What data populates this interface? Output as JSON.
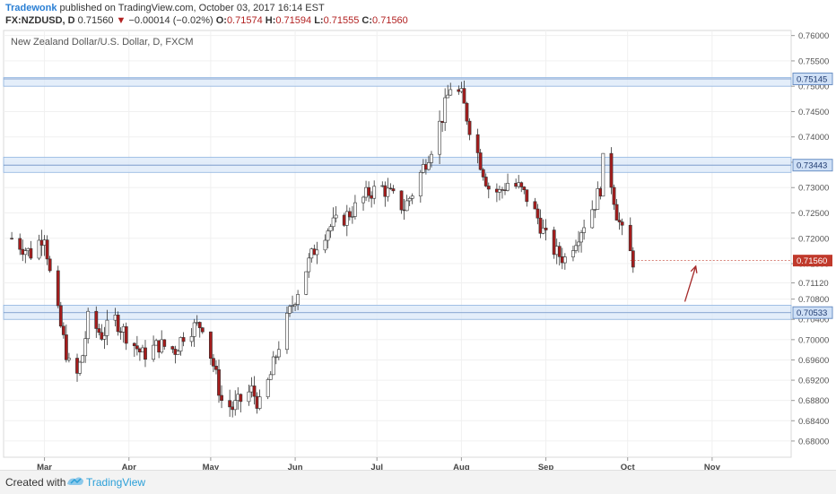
{
  "header": {
    "author": "Tradewonk",
    "published_text": "published on TradingView.com, October 03, 2017 16:14 EST",
    "symbol": "FX:NZDUSD, D",
    "last_price": "0.71560",
    "change": "−0.00014 (−0.02%)",
    "open_label": "O:",
    "open": "0.71574",
    "high_label": "H:",
    "high": "0.71594",
    "low_label": "L:",
    "low": "0.71555",
    "close_label": "C:",
    "close": "0.71560"
  },
  "footer": {
    "created_with": "Created with",
    "brand": "TradingView"
  },
  "colors": {
    "up_candle": "#ffffff",
    "down_candle": "#a51c1c",
    "wick": "#333333",
    "zone_fill": "#dbe8f8",
    "zone_stroke": "#8fb4e0",
    "price_badge": "#c0392b",
    "zone_badge_text": "#1f3a70",
    "arrow": "#a52a2a"
  },
  "chart_data": {
    "type": "candlestick",
    "title": "New Zealand Dollar/U.S. Dollar, D, FXCM",
    "ylim": [
      0.6768,
      0.761
    ],
    "y_ticks": [
      "0.76000",
      "0.75500",
      "0.75000",
      "0.74500",
      "0.74000",
      "0.73500",
      "0.73000",
      "0.72500",
      "0.72000",
      "0.71500",
      "0.71120",
      "0.70800",
      "0.70400",
      "0.70000",
      "0.69600",
      "0.69200",
      "0.68800",
      "0.68400",
      "0.68000"
    ],
    "month_ticks": [
      {
        "label": "Mar",
        "date": "2017-03-01"
      },
      {
        "label": "Apr",
        "date": "2017-04-01"
      },
      {
        "label": "May",
        "date": "2017-05-01"
      },
      {
        "label": "Jun",
        "date": "2017-06-01"
      },
      {
        "label": "Jul",
        "date": "2017-07-01"
      },
      {
        "label": "Aug",
        "date": "2017-08-01"
      },
      {
        "label": "Sep",
        "date": "2017-09-01"
      },
      {
        "label": "Oct",
        "date": "2017-10-01"
      },
      {
        "label": "Nov",
        "date": "2017-11-01"
      }
    ],
    "zones": [
      {
        "level": "0.75145",
        "low": 0.75,
        "high": 0.7517
      },
      {
        "level": "0.73443",
        "low": 0.733,
        "high": 0.736
      },
      {
        "level": "0.70533",
        "low": 0.704,
        "high": 0.7068
      }
    ],
    "current_price": "0.71560",
    "grid": true,
    "series_shape": [
      [
        "2017-02-17",
        0.72
      ],
      [
        "2017-02-24",
        0.717
      ],
      [
        "2017-03-01",
        0.721
      ],
      [
        "2017-03-03",
        0.713
      ],
      [
        "2017-03-06",
        0.705
      ],
      [
        "2017-03-08",
        0.7
      ],
      [
        "2017-03-10",
        0.695
      ],
      [
        "2017-03-13",
        0.693
      ],
      [
        "2017-03-15",
        0.697
      ],
      [
        "2017-03-17",
        0.704
      ],
      [
        "2017-03-22",
        0.701
      ],
      [
        "2017-03-27",
        0.704
      ],
      [
        "2017-03-31",
        0.701
      ],
      [
        "2017-04-06",
        0.697
      ],
      [
        "2017-04-12",
        0.699
      ],
      [
        "2017-04-18",
        0.698
      ],
      [
        "2017-04-22",
        0.702
      ],
      [
        "2017-04-28",
        0.703
      ],
      [
        "2017-05-02",
        0.695
      ],
      [
        "2017-05-05",
        0.688
      ],
      [
        "2017-05-09",
        0.6865
      ],
      [
        "2017-05-12",
        0.688
      ],
      [
        "2017-05-16",
        0.69
      ],
      [
        "2017-05-19",
        0.687
      ],
      [
        "2017-05-23",
        0.693
      ],
      [
        "2017-05-26",
        0.699
      ],
      [
        "2017-05-31",
        0.707
      ],
      [
        "2017-06-05",
        0.714
      ],
      [
        "2017-06-09",
        0.719
      ],
      [
        "2017-06-13",
        0.722
      ],
      [
        "2017-06-19",
        0.724
      ],
      [
        "2017-06-23",
        0.726
      ],
      [
        "2017-06-28",
        0.729
      ],
      [
        "2017-07-03",
        0.73
      ],
      [
        "2017-07-07",
        0.728
      ],
      [
        "2017-07-11",
        0.726
      ],
      [
        "2017-07-14",
        0.729
      ],
      [
        "2017-07-18",
        0.734
      ],
      [
        "2017-07-21",
        0.738
      ],
      [
        "2017-07-25",
        0.744
      ],
      [
        "2017-07-28",
        0.75
      ],
      [
        "2017-08-01",
        0.748
      ],
      [
        "2017-08-04",
        0.742
      ],
      [
        "2017-08-08",
        0.735
      ],
      [
        "2017-08-11",
        0.73
      ],
      [
        "2017-08-15",
        0.729
      ],
      [
        "2017-08-18",
        0.731
      ],
      [
        "2017-08-22",
        0.73
      ],
      [
        "2017-08-25",
        0.728
      ],
      [
        "2017-08-29",
        0.724
      ],
      [
        "2017-09-01",
        0.72
      ],
      [
        "2017-09-05",
        0.717
      ],
      [
        "2017-09-08",
        0.716
      ],
      [
        "2017-09-12",
        0.72
      ],
      [
        "2017-09-15",
        0.723
      ],
      [
        "2017-09-19",
        0.727
      ],
      [
        "2017-09-21",
        0.73
      ],
      [
        "2017-09-22",
        0.735
      ],
      [
        "2017-09-25",
        0.731
      ],
      [
        "2017-09-27",
        0.725
      ],
      [
        "2017-09-29",
        0.721
      ],
      [
        "2017-10-03",
        0.7156
      ]
    ],
    "projection_arrow": {
      "from": [
        "2017-10-22",
        0.7075
      ],
      "to": [
        "2017-10-26",
        0.7145
      ]
    }
  }
}
